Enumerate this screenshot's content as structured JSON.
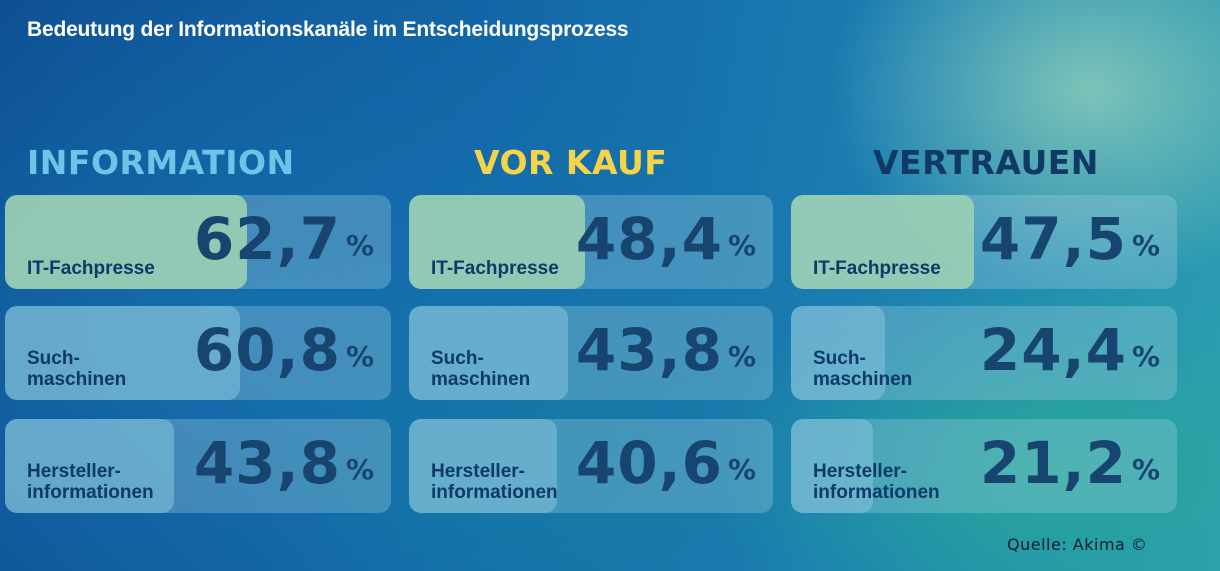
{
  "title": "Bedeutung der Informationskanäle im Entscheidungsprozess",
  "source": "Quelle:  Akima  ©",
  "colors": {
    "information": "#6cc4e6",
    "vor_kauf": "#f5d44a",
    "vertrauen": "#0f3a66",
    "bar_top": "#9fd3b3",
    "bar_other": "#7fc0d8"
  },
  "chart_data": {
    "type": "bar",
    "title": "Bedeutung der Informationskanäle im Entscheidungsprozess",
    "categories": [
      "IT-Fachpresse",
      "Such-\nmaschinen",
      "Hersteller-\ninformationen"
    ],
    "unit": "%",
    "ylim": [
      0,
      100
    ],
    "groups": [
      {
        "name": "INFORMATION",
        "color": "#6cc4e6",
        "values": [
          62.7,
          60.8,
          43.8
        ],
        "labels": [
          "62,7",
          "60,8",
          "43,8"
        ]
      },
      {
        "name": "VOR KAUF",
        "color": "#f5d44a",
        "values": [
          48.4,
          43.8,
          40.6
        ],
        "labels": [
          "48,4",
          "43,8",
          "40,6"
        ]
      },
      {
        "name": "VERTRAUEN",
        "color": "#0f3a66",
        "values": [
          47.5,
          24.4,
          21.2
        ],
        "labels": [
          "47,5",
          "24,4",
          "21,2"
        ]
      }
    ]
  }
}
